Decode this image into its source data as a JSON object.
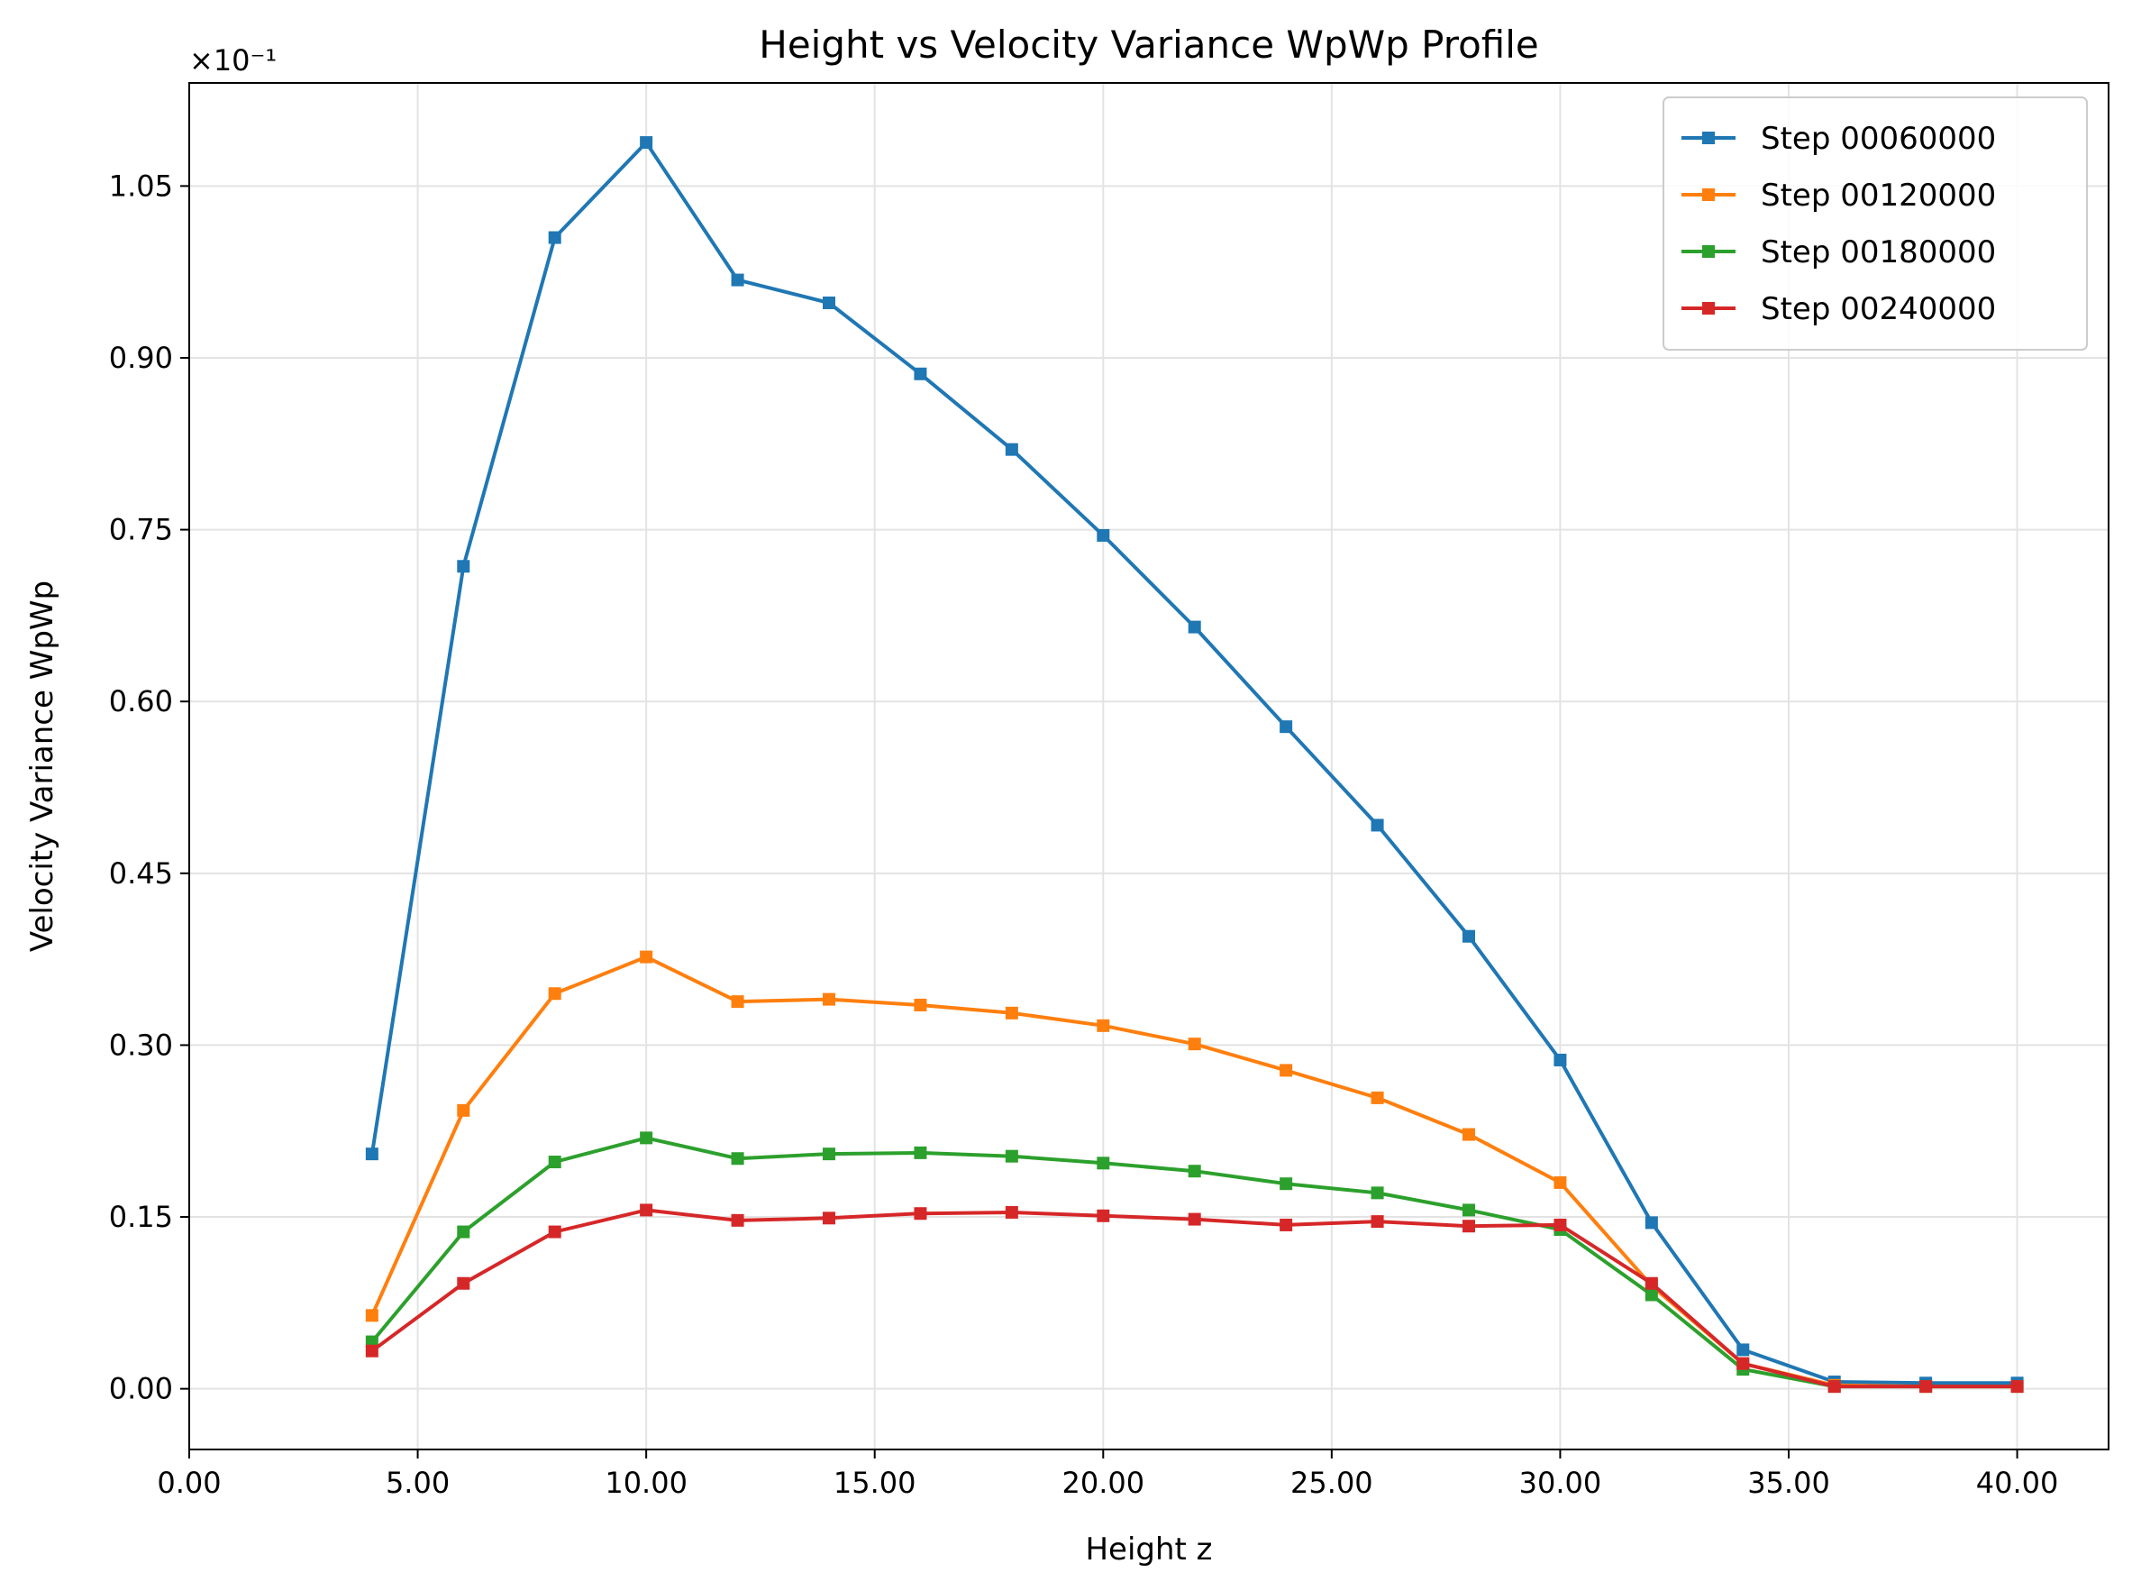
{
  "chart_data": {
    "type": "line",
    "title": "Height vs Velocity Variance WpWp Profile",
    "xlabel": "Height z",
    "ylabel": "Velocity Variance WpWp",
    "y_offset_text": "×10⁻¹",
    "xlim": [
      0,
      42
    ],
    "ylim": [
      -0.053,
      1.14
    ],
    "xticks": [
      0,
      5,
      10,
      15,
      20,
      25,
      30,
      35,
      40
    ],
    "xtick_labels": [
      "0.00",
      "5.00",
      "10.00",
      "15.00",
      "20.00",
      "25.00",
      "30.00",
      "35.00",
      "40.00"
    ],
    "yticks": [
      0,
      0.15,
      0.3,
      0.45,
      0.6,
      0.75,
      0.9,
      1.05
    ],
    "ytick_labels": [
      "0.00",
      "0.15",
      "0.30",
      "0.45",
      "0.60",
      "0.75",
      "0.90",
      "1.05"
    ],
    "grid": true,
    "legend_position": "top-right",
    "marker": "square",
    "x": [
      4,
      6,
      8,
      10,
      12,
      14,
      16,
      18,
      20,
      22,
      24,
      26,
      28,
      30,
      32,
      34,
      36,
      38,
      40
    ],
    "series": [
      {
        "name": "Step 00060000",
        "color": "#1f77b4",
        "values": [
          0.205,
          0.718,
          1.005,
          1.088,
          0.968,
          0.948,
          0.886,
          0.82,
          0.745,
          0.665,
          0.578,
          0.492,
          0.395,
          0.287,
          0.145,
          0.034,
          0.006,
          0.005,
          0.005
        ]
      },
      {
        "name": "Step 00120000",
        "color": "#ff7f0e",
        "values": [
          0.064,
          0.243,
          0.345,
          0.377,
          0.338,
          0.34,
          0.335,
          0.328,
          0.317,
          0.301,
          0.278,
          0.254,
          0.222,
          0.18,
          0.09,
          0.022,
          0.003,
          0.002,
          0.002
        ]
      },
      {
        "name": "Step 00180000",
        "color": "#2ca02c",
        "values": [
          0.041,
          0.137,
          0.198,
          0.219,
          0.201,
          0.205,
          0.206,
          0.203,
          0.197,
          0.19,
          0.179,
          0.171,
          0.156,
          0.139,
          0.082,
          0.017,
          0.002,
          0.002,
          0.002
        ]
      },
      {
        "name": "Step 00240000",
        "color": "#d62728",
        "values": [
          0.033,
          0.092,
          0.137,
          0.156,
          0.147,
          0.149,
          0.153,
          0.154,
          0.151,
          0.148,
          0.143,
          0.146,
          0.142,
          0.143,
          0.092,
          0.022,
          0.002,
          0.002,
          0.002
        ]
      }
    ]
  }
}
